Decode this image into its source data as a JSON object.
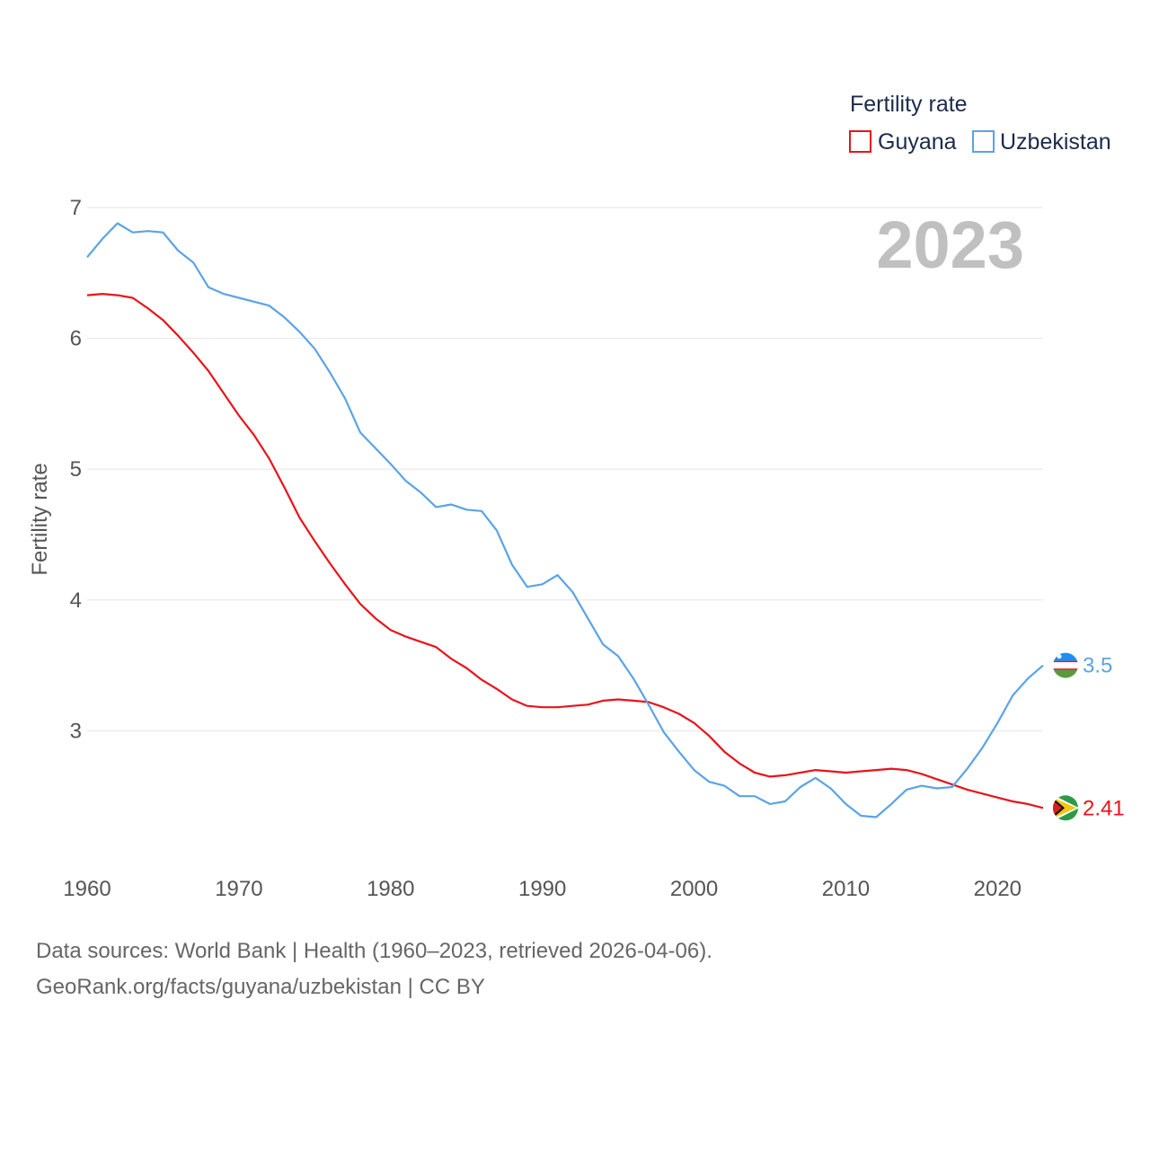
{
  "chart_data": {
    "type": "line",
    "year_label": "2023",
    "legend_title": "Fertility rate",
    "ylabel": "Fertility rate",
    "xlabel": "",
    "xlim": [
      1960,
      2023
    ],
    "ylim": [
      2,
      7
    ],
    "y_ticks": [
      3,
      4,
      5,
      6,
      7
    ],
    "x_ticks": [
      1960,
      1970,
      1980,
      1990,
      2000,
      2010,
      2020
    ],
    "grid": true,
    "legend_position": "top-right",
    "x": [
      1960,
      1961,
      1962,
      1963,
      1964,
      1965,
      1966,
      1967,
      1968,
      1969,
      1970,
      1971,
      1972,
      1973,
      1974,
      1975,
      1976,
      1977,
      1978,
      1979,
      1980,
      1981,
      1982,
      1983,
      1984,
      1985,
      1986,
      1987,
      1988,
      1989,
      1990,
      1991,
      1992,
      1993,
      1994,
      1995,
      1996,
      1997,
      1998,
      1999,
      2000,
      2001,
      2002,
      2003,
      2004,
      2005,
      2006,
      2007,
      2008,
      2009,
      2010,
      2011,
      2012,
      2013,
      2014,
      2015,
      2016,
      2017,
      2018,
      2019,
      2020,
      2021,
      2022,
      2023
    ],
    "series": [
      {
        "name": "Guyana",
        "color": "#e8141b",
        "end_label": "2.41",
        "flag": "guyana-flag",
        "values": [
          6.33,
          6.34,
          6.33,
          6.31,
          6.23,
          6.14,
          6.02,
          5.89,
          5.75,
          5.58,
          5.41,
          5.26,
          5.08,
          4.86,
          4.63,
          4.45,
          4.28,
          4.12,
          3.97,
          3.86,
          3.77,
          3.72,
          3.68,
          3.64,
          3.55,
          3.48,
          3.39,
          3.32,
          3.24,
          3.19,
          3.18,
          3.18,
          3.19,
          3.2,
          3.23,
          3.24,
          3.23,
          3.22,
          3.18,
          3.13,
          3.06,
          2.96,
          2.84,
          2.75,
          2.68,
          2.65,
          2.66,
          2.68,
          2.7,
          2.69,
          2.68,
          2.69,
          2.7,
          2.71,
          2.7,
          2.67,
          2.63,
          2.59,
          2.55,
          2.52,
          2.49,
          2.46,
          2.44,
          2.41
        ]
      },
      {
        "name": "Uzbekistan",
        "color": "#5ba3e6",
        "end_label": "3.5",
        "flag": "uzbekistan-flag",
        "values": [
          6.62,
          6.76,
          6.88,
          6.81,
          6.82,
          6.81,
          6.67,
          6.58,
          6.39,
          6.34,
          6.31,
          6.28,
          6.25,
          6.16,
          6.05,
          5.92,
          5.74,
          5.54,
          5.28,
          5.16,
          5.04,
          4.91,
          4.82,
          4.71,
          4.73,
          4.69,
          4.68,
          4.53,
          4.27,
          4.1,
          4.12,
          4.19,
          4.06,
          3.86,
          3.66,
          3.57,
          3.4,
          3.2,
          2.99,
          2.84,
          2.7,
          2.61,
          2.58,
          2.5,
          2.5,
          2.44,
          2.46,
          2.57,
          2.64,
          2.56,
          2.44,
          2.35,
          2.34,
          2.44,
          2.55,
          2.58,
          2.56,
          2.57,
          2.71,
          2.87,
          3.06,
          3.27,
          3.4,
          3.5
        ]
      }
    ]
  },
  "footer": {
    "line1": "Data sources: World Bank | Health (1960–2023, retrieved 2026-04-06).",
    "line2": "GeoRank.org/facts/guyana/uzbekistan | CC BY"
  }
}
